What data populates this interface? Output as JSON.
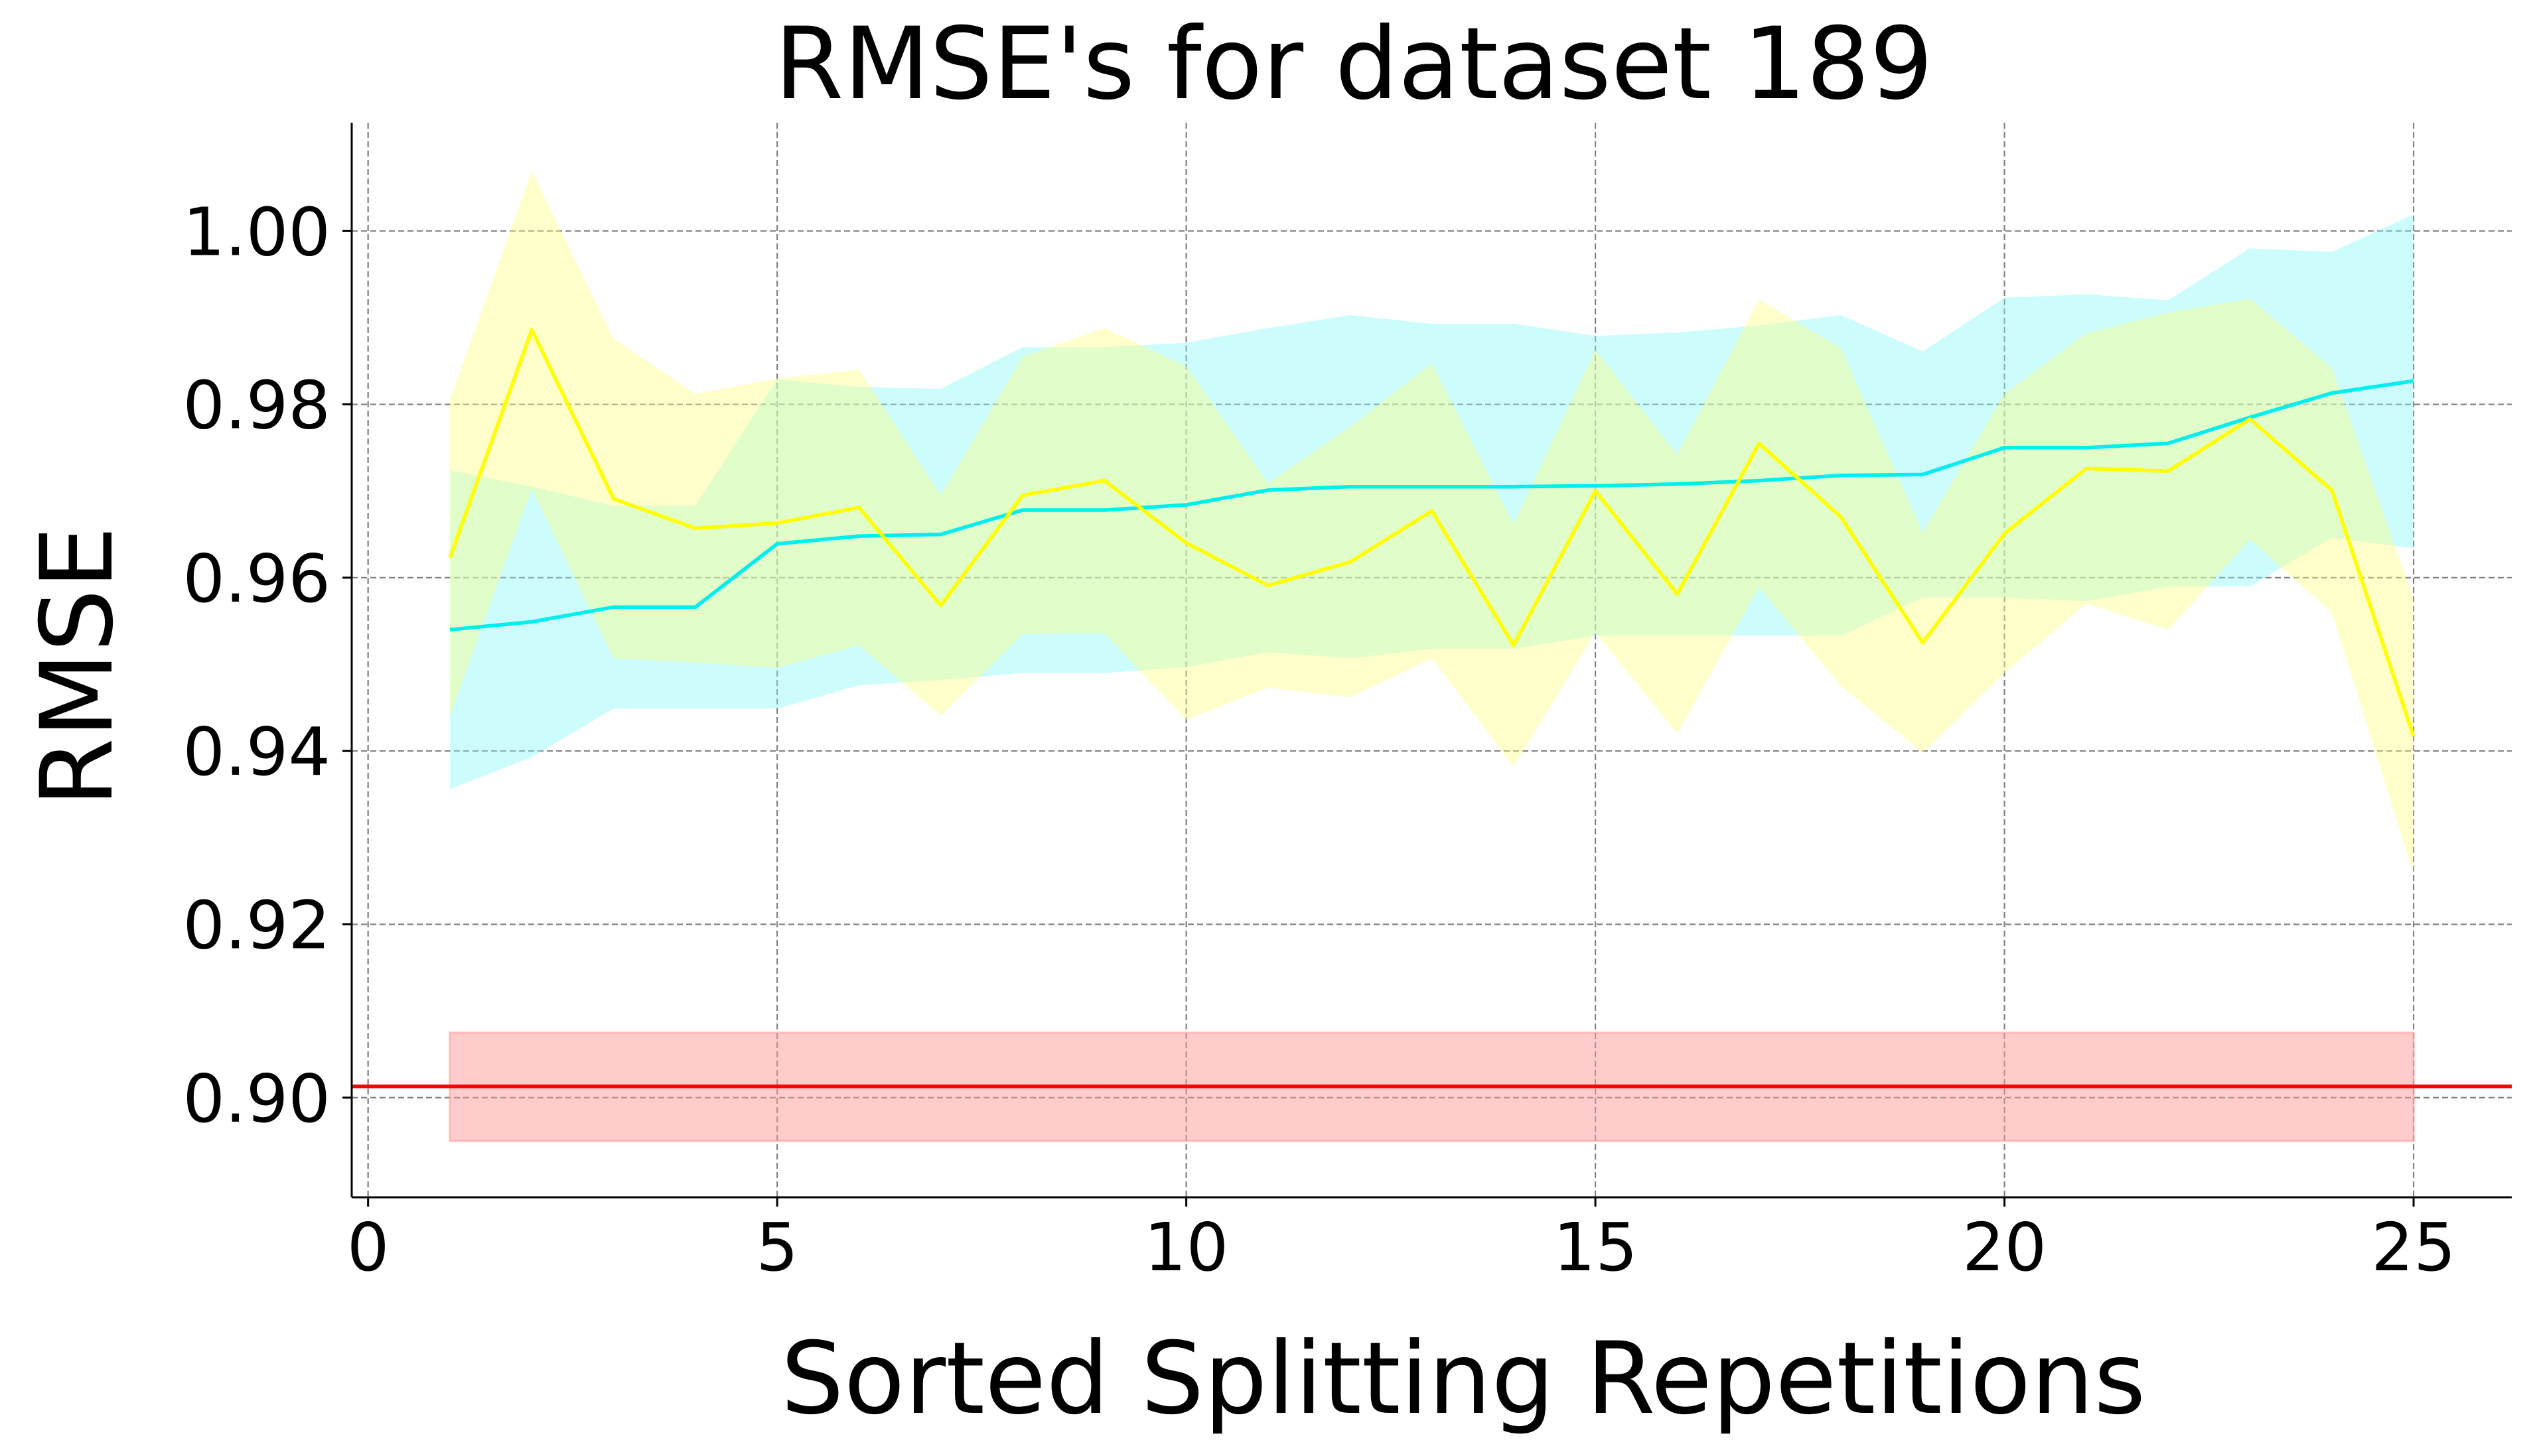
{
  "chart_data": {
    "type": "line",
    "title": "RMSE's for dataset 189",
    "xlabel": "Sorted Splitting Repetitions",
    "ylabel": "RMSE",
    "xlim": [
      -0.2,
      26.2
    ],
    "ylim": [
      0.8885,
      1.0125
    ],
    "xticks": [
      0,
      5,
      10,
      15,
      20,
      25
    ],
    "xtick_labels": [
      "0",
      "5",
      "10",
      "15",
      "20",
      "25"
    ],
    "yticks": [
      0.9,
      0.92,
      0.94,
      0.96,
      0.98,
      1.0
    ],
    "ytick_labels": [
      "0.90",
      "0.92",
      "0.94",
      "0.96",
      "0.98",
      "1.00"
    ],
    "grid": true,
    "x": [
      1,
      2,
      3,
      4,
      5,
      6,
      7,
      8,
      9,
      10,
      11,
      12,
      13,
      14,
      15,
      16,
      17,
      18,
      19,
      20,
      21,
      22,
      23,
      24,
      25
    ],
    "series": [
      {
        "color": "#00eeee",
        "band_color": "#7ff7f7",
        "values": [
          0.954,
          0.9549,
          0.9566,
          0.9566,
          0.9639,
          0.9648,
          0.965,
          0.9678,
          0.9678,
          0.9684,
          0.9701,
          0.9705,
          0.9705,
          0.9705,
          0.9706,
          0.9708,
          0.9712,
          0.9718,
          0.9719,
          0.975,
          0.975,
          0.9755,
          0.9785,
          0.9813,
          0.9827
        ],
        "lower": [
          0.9356,
          0.9393,
          0.9449,
          0.9449,
          0.9449,
          0.9476,
          0.9482,
          0.949,
          0.949,
          0.9497,
          0.9514,
          0.9507,
          0.9518,
          0.9518,
          0.9533,
          0.9533,
          0.9533,
          0.9533,
          0.9577,
          0.9577,
          0.9573,
          0.959,
          0.959,
          0.9646,
          0.9634
        ],
        "upper": [
          0.9724,
          0.9705,
          0.9683,
          0.9683,
          0.9829,
          0.982,
          0.9818,
          0.9866,
          0.9866,
          0.9871,
          0.9888,
          0.9903,
          0.9893,
          0.9893,
          0.9879,
          0.9883,
          0.9891,
          0.9903,
          0.9861,
          0.9923,
          0.9927,
          0.992,
          0.998,
          0.9976,
          1.0019
        ]
      },
      {
        "color": "#ffff00",
        "band_color": "#ffff7f",
        "values": [
          0.9623,
          0.9886,
          0.9691,
          0.9657,
          0.9663,
          0.9681,
          0.9568,
          0.9695,
          0.9712,
          0.964,
          0.9591,
          0.9618,
          0.9677,
          0.9522,
          0.97,
          0.9581,
          0.9755,
          0.967,
          0.9525,
          0.9651,
          0.9726,
          0.9723,
          0.9783,
          0.9701,
          0.9417
        ],
        "lower": [
          0.944,
          0.9703,
          0.9507,
          0.9502,
          0.9496,
          0.9522,
          0.9441,
          0.9535,
          0.9536,
          0.9436,
          0.9473,
          0.9462,
          0.9507,
          0.9382,
          0.9537,
          0.942,
          0.9589,
          0.9475,
          0.9398,
          0.949,
          0.957,
          0.954,
          0.9644,
          0.956,
          0.9258
        ],
        "upper": [
          0.9806,
          1.0069,
          0.9876,
          0.9812,
          0.983,
          0.984,
          0.9695,
          0.9855,
          0.9888,
          0.9844,
          0.9709,
          0.9774,
          0.9847,
          0.9662,
          0.9863,
          0.9742,
          0.9921,
          0.9865,
          0.9652,
          0.9812,
          0.9882,
          0.9906,
          0.9922,
          0.9842,
          0.9576
        ]
      }
    ],
    "baseline": {
      "value": 0.9013,
      "lower": 0.895,
      "upper": 0.9075,
      "x_start": 1,
      "x_end": 25,
      "color": "#ff0000",
      "band_color": "#ff9999"
    }
  }
}
